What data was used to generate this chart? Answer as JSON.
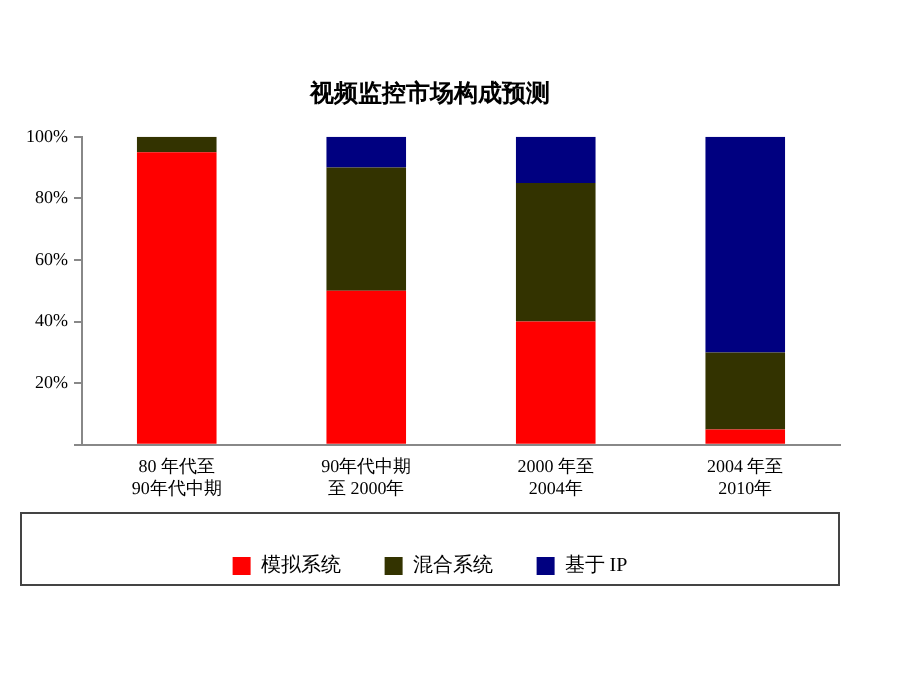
{
  "chart_data": {
    "type": "bar",
    "title": "视频监控市场构成预测",
    "stacked": true,
    "categories": [
      "80 年代至\n90年代中期",
      "90年代中期至 2000年",
      "2000 年至\n2004年",
      "2004 年至\n2010年"
    ],
    "series": [
      {
        "name": "模拟系统",
        "color": "#ff0000",
        "values": [
          95,
          50,
          40,
          5
        ]
      },
      {
        "name": "混合系统",
        "color": "#333300",
        "values": [
          5,
          40,
          45,
          25
        ]
      },
      {
        "name": "基于 IP",
        "color": "#000080",
        "values": [
          0,
          10,
          15,
          70
        ]
      }
    ],
    "ylim": [
      0,
      100
    ],
    "yticks": [
      {
        "value": 0,
        "label": null
      },
      {
        "value": 20,
        "label": "20%"
      },
      {
        "value": 40,
        "label": "40%"
      },
      {
        "value": 60,
        "label": "60%"
      },
      {
        "value": 80,
        "label": "80%"
      },
      {
        "value": 100,
        "label": "100%"
      }
    ],
    "grid": false,
    "legend": "bottom"
  }
}
